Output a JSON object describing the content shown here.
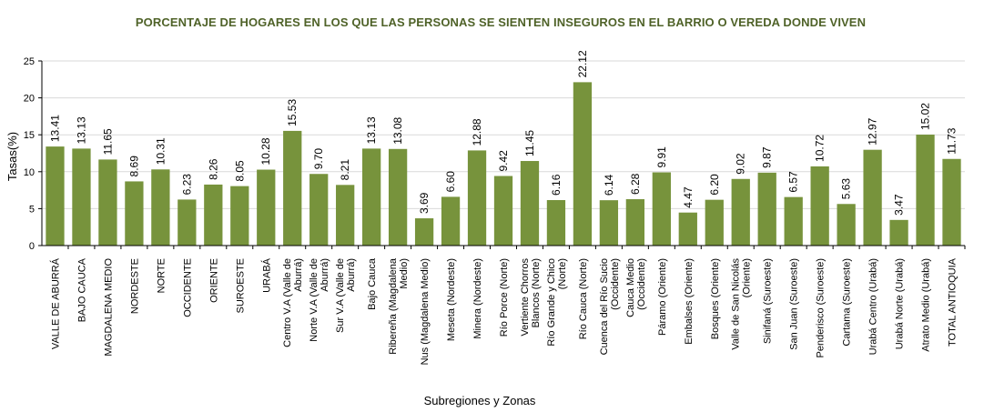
{
  "chart_data": {
    "type": "bar",
    "title": "PORCENTAJE DE HOGARES EN LOS QUE LAS PERSONAS  SE SIENTEN INSEGUROS EN EL BARRIO O VEREDA DONDE VIVEN",
    "xlabel": "Subregiones y Zonas",
    "ylabel": "Tasas(%)",
    "ylim": [
      0,
      25
    ],
    "yticks": [
      "0",
      "5",
      "10",
      "15",
      "20",
      "25"
    ],
    "grid": true,
    "legend": "none",
    "bar_color": "#77933c",
    "categories": [
      "VALLE DE ABURRÁ",
      "BAJO CAUCA",
      "MAGDALENA MEDIO",
      "NORDESTE",
      "NORTE",
      "OCCIDENTE",
      "ORIENTE",
      "SUROESTE",
      "URABÁ",
      "Centro V.A (Valle de Aburrá)",
      "Norte V.A (Valle de Aburrá)",
      "Sur  V.A (Valle de Aburrá)",
      "Bajo Cauca",
      "Ribereña  (Magdalena Medio)",
      "Nus  (Magdalena Medio)",
      "Meseta  (Nordeste)",
      "Minera  (Nordeste)",
      "Río Porce   (Norte)",
      "Vertiente Chorros Blancos (Norte)",
      "Río Grande y Chico (Norte)",
      "Río Cauca  (Norte)",
      "Cuenca del Río Sucio (Occidente)",
      "Cauca Medio  (Occidente)",
      "Páramo   (Oriente)",
      "Embalses  (Oriente)",
      "Bosques  (Oriente)",
      "Valle de San Nicolás (Oriente)",
      "Sinifaná (Suroeste)",
      "San Juan  (Suroeste)",
      "Penderisco (Suroeste)",
      "Cartama  (Suroeste)",
      "Urabá Centro  (Urabá)",
      "Urabá Norte  (Urabá)",
      "Atrato Medio (Urabá)",
      "TOTAL ANTIOQUIA"
    ],
    "values": [
      13.41,
      13.13,
      11.65,
      8.69,
      10.31,
      6.23,
      8.26,
      8.05,
      10.28,
      15.53,
      9.7,
      8.21,
      13.13,
      13.08,
      3.69,
      6.6,
      12.88,
      9.42,
      11.45,
      6.16,
      22.12,
      6.14,
      6.28,
      9.91,
      4.47,
      6.2,
      9.02,
      9.87,
      6.57,
      10.72,
      5.63,
      12.97,
      3.47,
      15.02,
      11.73
    ],
    "data_labels": [
      "13.41",
      "13.13",
      "11.65",
      "8.69",
      "10.31",
      "6.23",
      "8.26",
      "8.05",
      "10.28",
      "15.53",
      "9.70",
      "8.21",
      "13.13",
      "13.08",
      "3.69",
      "6.60",
      "12.88",
      "9.42",
      "11.45",
      "6.16",
      "22.12",
      "6.14",
      "6.28",
      "9.91",
      "4.47",
      "6.20",
      "9.02",
      "9.87",
      "6.57",
      "10.72",
      "5.63",
      "12.97",
      "3.47",
      "15.02",
      "11.73"
    ]
  }
}
